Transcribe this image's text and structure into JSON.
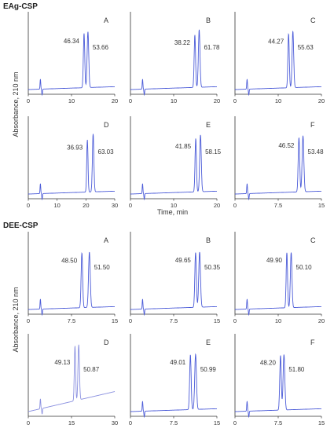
{
  "figure": {
    "sections": [
      {
        "label": "EAg-CSP",
        "y_axis_label": "Absorbance, 210 nm",
        "x_axis_label": "Time, min"
      },
      {
        "label": "DEE-CSP",
        "y_axis_label": "Absorbance, 210 nm",
        "x_axis_label": ""
      }
    ]
  },
  "chart_data": [
    {
      "type": "line",
      "section": "EAg-CSP",
      "panel": "A",
      "xlim": [
        0,
        20
      ],
      "xticks": [
        "0",
        "10",
        "20"
      ],
      "peaks": [
        {
          "t": 12.9,
          "area_pct": "46.34"
        },
        {
          "t": 13.8,
          "area_pct": "53.66"
        }
      ],
      "color": "#4b5bd8"
    },
    {
      "type": "line",
      "section": "EAg-CSP",
      "panel": "B",
      "xlim": [
        0,
        20
      ],
      "xticks": [
        "0",
        "10",
        "20"
      ],
      "peaks": [
        {
          "t": 14.9,
          "area_pct": "38.22"
        },
        {
          "t": 15.9,
          "area_pct": "61.78"
        }
      ],
      "color": "#4b5bd8"
    },
    {
      "type": "line",
      "section": "EAg-CSP",
      "panel": "C",
      "xlim": [
        0,
        20
      ],
      "xticks": [
        "0",
        "10",
        "20"
      ],
      "peaks": [
        {
          "t": 12.4,
          "area_pct": "44.27"
        },
        {
          "t": 13.4,
          "area_pct": "55.63"
        }
      ],
      "color": "#4b5bd8"
    },
    {
      "type": "line",
      "section": "EAg-CSP",
      "panel": "D",
      "xlim": [
        0,
        30
      ],
      "xticks": [
        "0",
        "10",
        "20",
        "30"
      ],
      "peaks": [
        {
          "t": 20.5,
          "area_pct": "36.93"
        },
        {
          "t": 22.5,
          "area_pct": "63.03"
        }
      ],
      "color": "#4b5bd8"
    },
    {
      "type": "line",
      "section": "EAg-CSP",
      "panel": "E",
      "xlim": [
        0,
        20
      ],
      "xticks": [
        "0",
        "10",
        "20"
      ],
      "peaks": [
        {
          "t": 15.1,
          "area_pct": "41.85"
        },
        {
          "t": 16.2,
          "area_pct": "58.15"
        }
      ],
      "color": "#4b5bd8"
    },
    {
      "type": "line",
      "section": "EAg-CSP",
      "panel": "F",
      "xlim": [
        0,
        15
      ],
      "xticks": [
        "0",
        "7.5",
        "15"
      ],
      "peaks": [
        {
          "t": 11.1,
          "area_pct": "46.52"
        },
        {
          "t": 11.8,
          "area_pct": "53.48"
        }
      ],
      "color": "#4b5bd8"
    },
    {
      "type": "line",
      "section": "DEE-CSP",
      "panel": "A",
      "xlim": [
        0,
        15
      ],
      "xticks": [
        "0",
        "7.5",
        "15"
      ],
      "peaks": [
        {
          "t": 9.3,
          "area_pct": "48.50"
        },
        {
          "t": 10.6,
          "area_pct": "51.50"
        }
      ],
      "color": "#4b5bd8"
    },
    {
      "type": "line",
      "section": "DEE-CSP",
      "panel": "B",
      "xlim": [
        0,
        15
      ],
      "xticks": [
        "0",
        "7.5",
        "15"
      ],
      "peaks": [
        {
          "t": 11.3,
          "area_pct": "49.65"
        },
        {
          "t": 12.0,
          "area_pct": "50.35"
        }
      ],
      "color": "#4b5bd8"
    },
    {
      "type": "line",
      "section": "DEE-CSP",
      "panel": "C",
      "xlim": [
        0,
        20
      ],
      "xticks": [
        "0",
        "10",
        "20"
      ],
      "peaks": [
        {
          "t": 12.0,
          "area_pct": "49.90"
        },
        {
          "t": 13.0,
          "area_pct": "50.10"
        }
      ],
      "color": "#4b5bd8"
    },
    {
      "type": "line",
      "section": "DEE-CSP",
      "panel": "D",
      "xlim": [
        0,
        30
      ],
      "xticks": [
        "0",
        "15",
        "30"
      ],
      "peaks": [
        {
          "t": 16.2,
          "area_pct": "49.13"
        },
        {
          "t": 17.5,
          "area_pct": "50.87"
        }
      ],
      "color": "#8a90e0"
    },
    {
      "type": "line",
      "section": "DEE-CSP",
      "panel": "E",
      "xlim": [
        0,
        15
      ],
      "xticks": [
        "0",
        "7.5",
        "15"
      ],
      "peaks": [
        {
          "t": 10.4,
          "area_pct": "49.01"
        },
        {
          "t": 11.3,
          "area_pct": "50.99"
        }
      ],
      "color": "#4b5bd8"
    },
    {
      "type": "line",
      "section": "DEE-CSP",
      "panel": "F",
      "xlim": [
        0,
        15
      ],
      "xticks": [
        "0",
        "7.5",
        "15"
      ],
      "peaks": [
        {
          "t": 7.9,
          "area_pct": "48.20"
        },
        {
          "t": 8.5,
          "area_pct": "51.80"
        }
      ],
      "color": "#4b5bd8"
    }
  ]
}
